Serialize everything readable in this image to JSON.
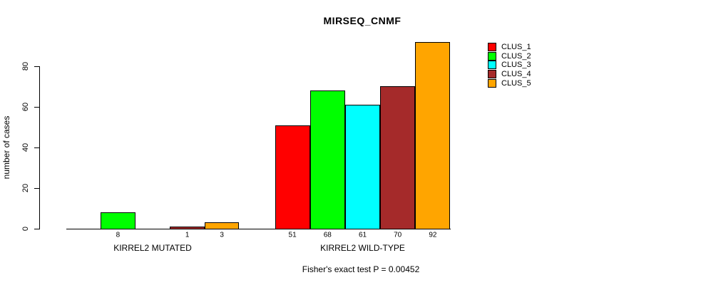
{
  "chart_data": {
    "type": "bar",
    "title": "MIRSEQ_CNMF",
    "ylabel": "number of cases",
    "xlabel": "",
    "subtitle": "Fisher's exact test P = 0.00452",
    "ylim": [
      0,
      92
    ],
    "yticks": [
      0,
      20,
      40,
      60,
      80
    ],
    "grid": false,
    "legend_position": "right",
    "legend": [
      {
        "name": "CLUS_1",
        "color": "#FF0000"
      },
      {
        "name": "CLUS_2",
        "color": "#00FF00"
      },
      {
        "name": "CLUS_3",
        "color": "#00FFFF"
      },
      {
        "name": "CLUS_4",
        "color": "#A52A2A"
      },
      {
        "name": "CLUS_5",
        "color": "#FFA500"
      }
    ],
    "series_colors": [
      "#FF0000",
      "#00FF00",
      "#00FFFF",
      "#A52A2A",
      "#FFA500"
    ],
    "groups": [
      {
        "label": "KIRREL2 MUTATED",
        "values": [
          0,
          8,
          0,
          1,
          3
        ],
        "bar_labels": [
          "",
          "8",
          "",
          "1",
          "3"
        ]
      },
      {
        "label": "KIRREL2 WILD-TYPE",
        "values": [
          51,
          68,
          61,
          70,
          92
        ],
        "bar_labels": [
          "51",
          "68",
          "61",
          "70",
          "92"
        ]
      }
    ]
  }
}
